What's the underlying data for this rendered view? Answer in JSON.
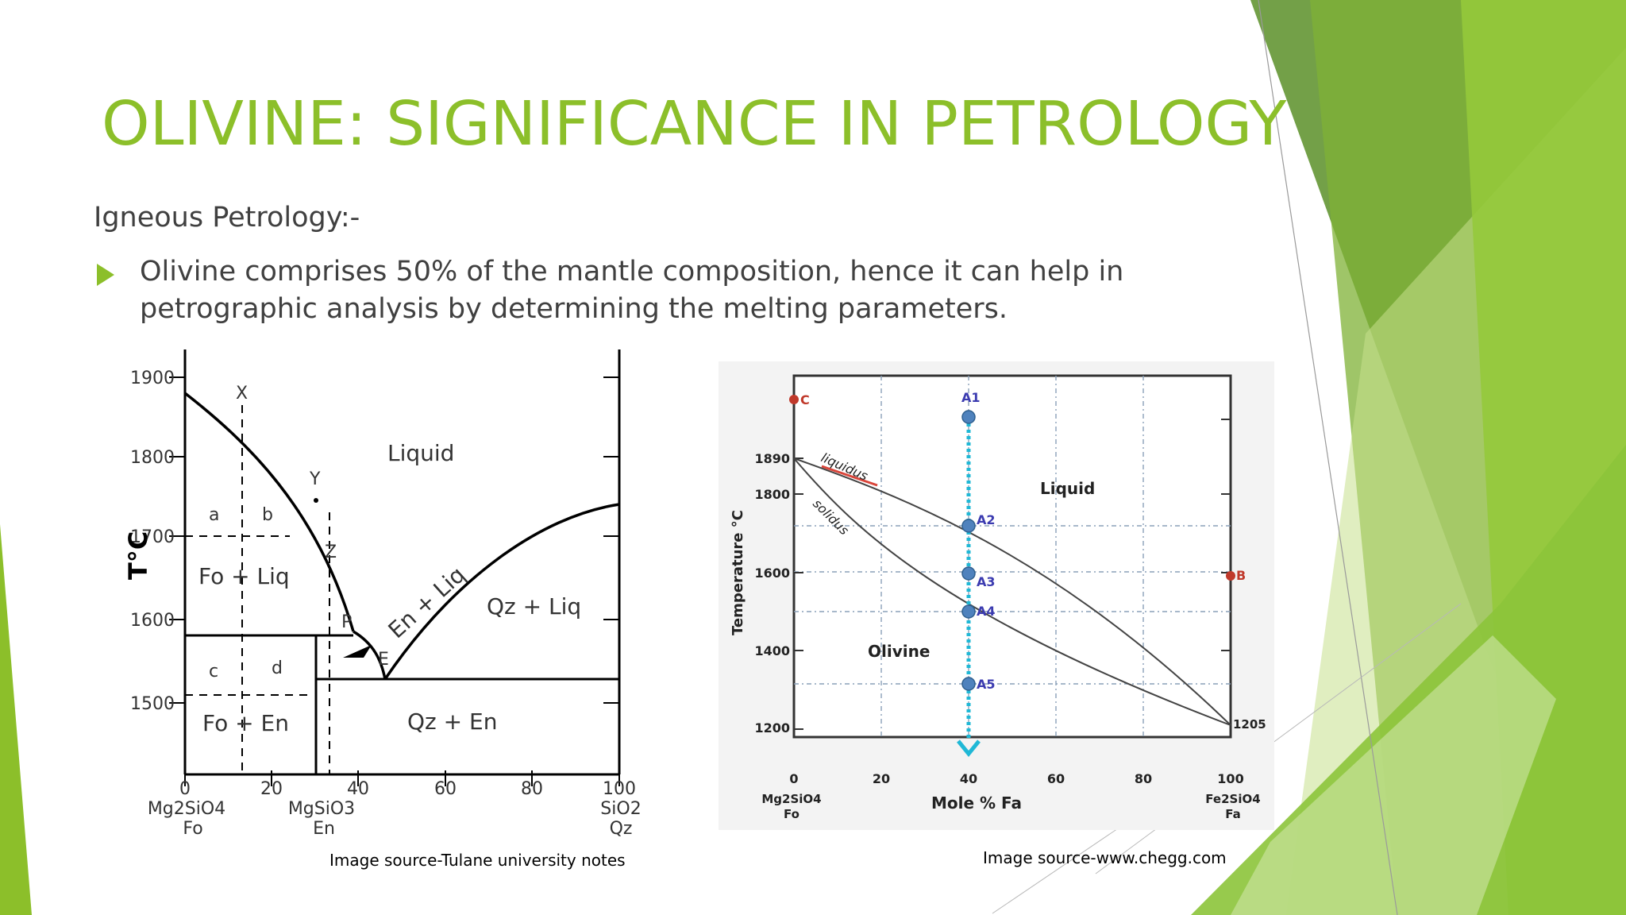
{
  "slide": {
    "title": "OLIVINE: SIGNIFICANCE IN PETROLOGY",
    "subheading": "Igneous Petrology:-",
    "bullet": "Olivine comprises 50% of the mantle composition, hence it can help in petrographic analysis by determining the melting parameters.",
    "accent_color": "#8cbf2a"
  },
  "diagram_left": {
    "y_ticks": [
      "1900",
      "1800",
      "1700",
      "1600",
      "1500"
    ],
    "x_ticks": [
      "0",
      "20",
      "40",
      "60",
      "80",
      "100"
    ],
    "y_axis_label": "T°C",
    "region_labels": {
      "liquid": "Liquid",
      "fo_liq": "Fo + Liq",
      "fo_en": "Fo + En",
      "en_liq": "En + Liq",
      "qz_liq": "Qz + Liq",
      "qz_en": "Qz + En"
    },
    "point_labels": {
      "x": "X",
      "y": "Y",
      "z": "Z",
      "p": "P",
      "e": "E",
      "a": "a",
      "b": "b",
      "c": "c",
      "d": "d"
    },
    "endmembers": {
      "fo_formula": "Mg2SiO4",
      "fo_abbr": "Fo",
      "en_formula": "MgSiO3",
      "en_abbr": "En",
      "qz_formula": "SiO2",
      "qz_abbr": "Qz"
    },
    "caption": "Image source-Tulane university notes"
  },
  "diagram_right": {
    "y_ticks": [
      "1890",
      "1800",
      "1600",
      "1400",
      "1200"
    ],
    "x_ticks": [
      "0",
      "20",
      "40",
      "60",
      "80",
      "100"
    ],
    "y_axis_label": "Temperature °C",
    "x_axis_label": "Mole % Fa",
    "curve_labels": {
      "liquidus": "liquidus",
      "solidus": "solidus",
      "value_1205": "1205"
    },
    "region_labels": {
      "liquid": "Liquid",
      "olivine": "Olivine"
    },
    "points": {
      "a1": "A1",
      "a2": "A2",
      "a3": "A3",
      "a4": "A4",
      "a5": "A5",
      "b": "B",
      "c": "C"
    },
    "endmembers": {
      "fo_formula": "Mg2SiO4",
      "fo_abbr": "Fo",
      "fa_formula": "Fe2SiO4",
      "fa_abbr": "Fa"
    },
    "caption": "Image source-www.chegg.com",
    "colors": {
      "point": "#4f82bd",
      "point_label": "#3b3bb0",
      "arrow": "#1fb8d6",
      "marker": "#c0392b"
    }
  }
}
